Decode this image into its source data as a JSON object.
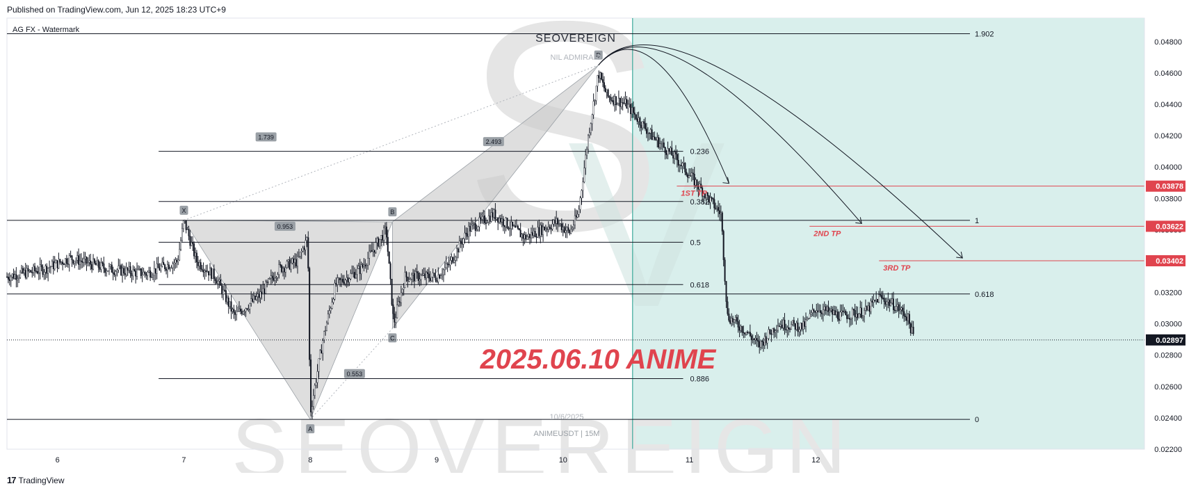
{
  "header": {
    "published": "Published on TradingView.com, Jun 12, 2025 18:23 UTC+9"
  },
  "footer": {
    "logo_glyph": "17",
    "brand": "TradingView"
  },
  "chart_data": {
    "type": "candlestick",
    "legend_tag": "AG FX - Watermark",
    "watermark": {
      "brand": "SEOVEREIGN",
      "motto": "NIL ADMIRARI",
      "date": "10/6/2025",
      "symbol": "ANIMEUSDT | 15M",
      "big": "SEOVEREIGN"
    },
    "annotation_title": "2025.06.10 ANIME",
    "x_ticks": [
      {
        "day": 6,
        "label": "6"
      },
      {
        "day": 7,
        "label": "7"
      },
      {
        "day": 8,
        "label": "8"
      },
      {
        "day": 9,
        "label": "9"
      },
      {
        "day": 10,
        "label": "10"
      },
      {
        "day": 11,
        "label": "11"
      },
      {
        "day": 12,
        "label": "12"
      }
    ],
    "x_range": [
      5.6,
      14.6
    ],
    "y_ticks": [
      "0.04800",
      "0.04600",
      "0.04400",
      "0.04200",
      "0.04000",
      "0.03800",
      "0.03600",
      "0.03400",
      "0.03200",
      "0.03000",
      "0.02800",
      "0.02600",
      "0.02400",
      "0.02200"
    ],
    "y_range": [
      0.022,
      0.0495
    ],
    "current_price": {
      "value": 0.02897,
      "label": "0.02897"
    },
    "tp_levels": [
      {
        "name": "1ST TP",
        "value": 0.03878,
        "label": "0.03878",
        "x_start": 10.9
      },
      {
        "name": "2ND TP",
        "value": 0.03622,
        "label": "0.03622",
        "x_start": 11.95
      },
      {
        "name": "3RD TP",
        "value": 0.03402,
        "label": "0.03402",
        "x_start": 12.5
      }
    ],
    "fib_levels": [
      {
        "label": "0.236",
        "value": 0.041,
        "x_start": 6.8,
        "x_end": 10.95
      },
      {
        "label": "0.382",
        "value": 0.0378,
        "x_start": 6.8,
        "x_end": 10.95
      },
      {
        "label": "0.5",
        "value": 0.0352,
        "x_start": 6.8,
        "x_end": 10.95
      },
      {
        "label": "0.618",
        "value": 0.0325,
        "x_start": 6.8,
        "x_end": 10.95
      },
      {
        "label": "0.886",
        "value": 0.0265,
        "x_start": 6.8,
        "x_end": 10.95
      }
    ],
    "ext_levels": [
      {
        "label": "1.902",
        "value": 0.0485
      },
      {
        "label": "1",
        "value": 0.0366
      },
      {
        "label": "0.618",
        "value": 0.0319
      },
      {
        "label": "0",
        "value": 0.0239
      }
    ],
    "pattern": {
      "points": [
        {
          "label": "X",
          "day": 7.0,
          "price": 0.0366
        },
        {
          "label": "A",
          "day": 8.0,
          "price": 0.0239
        },
        {
          "label": "B",
          "day": 8.65,
          "price": 0.0365
        },
        {
          "label": "C",
          "day": 8.65,
          "price": 0.0297
        },
        {
          "label": "D",
          "day": 10.28,
          "price": 0.0465
        }
      ],
      "ratios": [
        {
          "label": "0.953",
          "day": 7.8,
          "price": 0.0362
        },
        {
          "label": "0.553",
          "day": 8.35,
          "price": 0.0268
        },
        {
          "label": "1.739",
          "day": 7.65,
          "price": 0.0419
        },
        {
          "label": "2.493",
          "day": 9.45,
          "price": 0.0416
        }
      ]
    },
    "projection_start_day": 10.55,
    "colors": {
      "up": "#131722",
      "tp": "#e0444e",
      "projection_bg": "#d9efec",
      "projection_line": "#3aa99a",
      "pattern": "#c8c8c8"
    }
  }
}
